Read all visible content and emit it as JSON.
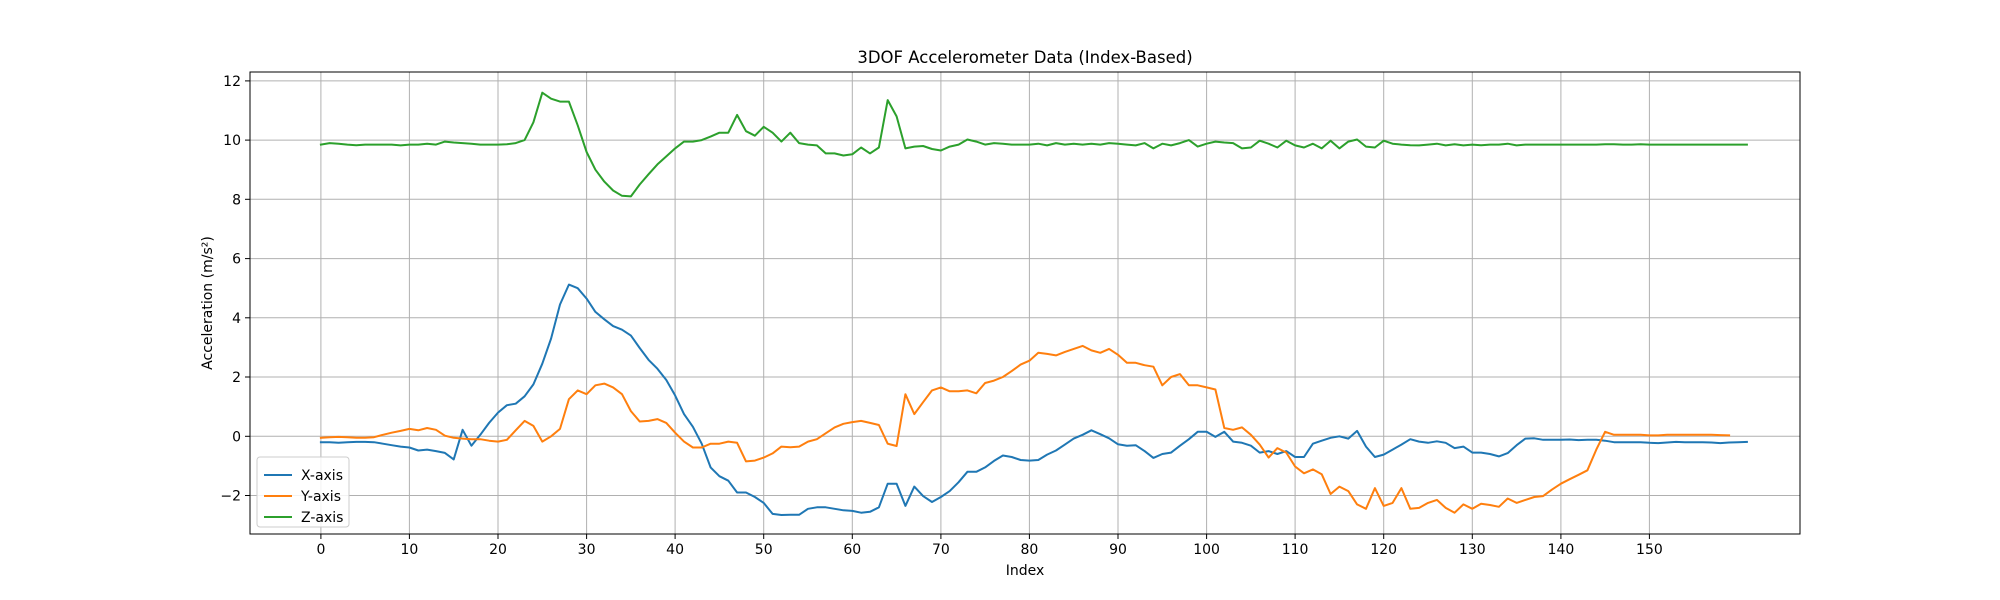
{
  "chart_data": {
    "type": "line",
    "title": "3DOF Accelerometer Data (Index-Based)",
    "xlabel": "Index",
    "ylabel": "Acceleration (m/s²)",
    "xlim": [
      -8,
      167
    ],
    "ylim": [
      -3.3,
      12.3
    ],
    "xticks": [
      0,
      10,
      20,
      30,
      40,
      50,
      60,
      70,
      80,
      90,
      100,
      110,
      120,
      130,
      140,
      150
    ],
    "yticks": [
      -2,
      0,
      2,
      4,
      6,
      8,
      10,
      12
    ],
    "grid": true,
    "legend": "lower-left",
    "x_start": 0,
    "series": [
      {
        "name": "X-axis",
        "color": "#1f77b4",
        "values": [
          -0.2,
          -0.2,
          -0.22,
          -0.2,
          -0.19,
          -0.19,
          -0.2,
          -0.25,
          -0.3,
          -0.35,
          -0.38,
          -0.48,
          -0.45,
          -0.5,
          -0.56,
          -0.78,
          0.22,
          -0.32,
          0.05,
          0.45,
          0.8,
          1.05,
          1.1,
          1.35,
          1.75,
          2.45,
          3.3,
          4.45,
          5.12,
          5.0,
          4.65,
          4.2,
          3.95,
          3.72,
          3.6,
          3.4,
          2.98,
          2.58,
          2.28,
          1.9,
          1.38,
          0.75,
          0.32,
          -0.25,
          -1.05,
          -1.35,
          -1.5,
          -1.9,
          -1.9,
          -2.05,
          -2.25,
          -2.62,
          -2.66,
          -2.65,
          -2.65,
          -2.45,
          -2.4,
          -2.4,
          -2.45,
          -2.5,
          -2.52,
          -2.58,
          -2.55,
          -2.4,
          -1.6,
          -1.6,
          -2.35,
          -1.7,
          -2.02,
          -2.22,
          -2.05,
          -1.85,
          -1.55,
          -1.2,
          -1.2,
          -1.05,
          -0.83,
          -0.65,
          -0.7,
          -0.8,
          -0.82,
          -0.8,
          -0.62,
          -0.48,
          -0.28,
          -0.08,
          0.05,
          0.2,
          0.07,
          -0.07,
          -0.27,
          -0.32,
          -0.3,
          -0.5,
          -0.73,
          -0.6,
          -0.55,
          -0.32,
          -0.1,
          0.15,
          0.15,
          -0.02,
          0.15,
          -0.18,
          -0.22,
          -0.32,
          -0.55,
          -0.5,
          -0.6,
          -0.5,
          -0.7,
          -0.7,
          -0.25,
          -0.15,
          -0.05,
          0.0,
          -0.08,
          0.18,
          -0.35,
          -0.7,
          -0.62,
          -0.45,
          -0.28,
          -0.1,
          -0.18,
          -0.22,
          -0.17,
          -0.22,
          -0.4,
          -0.35,
          -0.55,
          -0.55,
          -0.6,
          -0.68,
          -0.57,
          -0.3,
          -0.08,
          -0.07,
          -0.12,
          -0.12,
          -0.12,
          -0.11,
          -0.13,
          -0.12,
          -0.12,
          -0.15,
          -0.2,
          -0.2,
          -0.2,
          -0.2,
          -0.22,
          -0.23,
          -0.21,
          -0.19,
          -0.2,
          -0.2,
          -0.2,
          -0.21,
          -0.23,
          -0.21,
          -0.2,
          -0.19
        ]
      },
      {
        "name": "Y-axis",
        "color": "#ff7f0e",
        "values": [
          -0.05,
          -0.03,
          -0.02,
          -0.03,
          -0.05,
          -0.05,
          -0.03,
          0.05,
          0.12,
          0.18,
          0.25,
          0.2,
          0.28,
          0.22,
          0.02,
          -0.05,
          -0.08,
          -0.1,
          -0.1,
          -0.15,
          -0.18,
          -0.12,
          0.2,
          0.52,
          0.35,
          -0.18,
          0.0,
          0.25,
          1.25,
          1.55,
          1.42,
          1.72,
          1.78,
          1.65,
          1.42,
          0.85,
          0.5,
          0.52,
          0.58,
          0.45,
          0.12,
          -0.18,
          -0.38,
          -0.38,
          -0.25,
          -0.25,
          -0.18,
          -0.22,
          -0.85,
          -0.82,
          -0.72,
          -0.58,
          -0.35,
          -0.37,
          -0.35,
          -0.18,
          -0.1,
          0.1,
          0.3,
          0.42,
          0.48,
          0.52,
          0.45,
          0.38,
          -0.25,
          -0.33,
          1.42,
          0.75,
          1.15,
          1.55,
          1.65,
          1.52,
          1.52,
          1.55,
          1.45,
          1.8,
          1.88,
          2.0,
          2.2,
          2.42,
          2.55,
          2.82,
          2.78,
          2.73,
          2.85,
          2.95,
          3.05,
          2.9,
          2.82,
          2.95,
          2.75,
          2.48,
          2.48,
          2.4,
          2.35,
          1.72,
          2.0,
          2.1,
          1.72,
          1.72,
          1.65,
          1.58,
          0.28,
          0.22,
          0.3,
          0.05,
          -0.28,
          -0.72,
          -0.4,
          -0.55,
          -1.02,
          -1.25,
          -1.12,
          -1.28,
          -1.95,
          -1.7,
          -1.85,
          -2.3,
          -2.45,
          -1.75,
          -2.35,
          -2.25,
          -1.75,
          -2.45,
          -2.42,
          -2.25,
          -2.15,
          -2.42,
          -2.58,
          -2.3,
          -2.45,
          -2.28,
          -2.32,
          -2.38,
          -2.1,
          -2.25,
          -2.15,
          -2.05,
          -2.02,
          -1.8,
          -1.6,
          -1.45,
          -1.3,
          -1.15,
          -0.45,
          0.15,
          0.05,
          0.05,
          0.05,
          0.05,
          0.03,
          0.03,
          0.05,
          0.05,
          0.05,
          0.05,
          0.05,
          0.05,
          0.04,
          0.03
        ]
      },
      {
        "name": "Z-axis",
        "color": "#2ca02c",
        "values": [
          9.85,
          9.9,
          9.88,
          9.85,
          9.83,
          9.85,
          9.85,
          9.85,
          9.85,
          9.82,
          9.85,
          9.85,
          9.88,
          9.85,
          9.95,
          9.92,
          9.9,
          9.88,
          9.85,
          9.85,
          9.85,
          9.86,
          9.9,
          10.0,
          10.6,
          11.6,
          11.4,
          11.3,
          11.3,
          10.5,
          9.6,
          9.0,
          8.6,
          8.3,
          8.12,
          8.1,
          8.5,
          8.85,
          9.18,
          9.45,
          9.72,
          9.95,
          9.95,
          10.0,
          10.12,
          10.25,
          10.25,
          10.85,
          10.3,
          10.15,
          10.45,
          10.25,
          9.95,
          10.25,
          9.9,
          9.85,
          9.82,
          9.55,
          9.55,
          9.48,
          9.52,
          9.75,
          9.55,
          9.75,
          11.35,
          10.8,
          9.72,
          9.78,
          9.8,
          9.7,
          9.65,
          9.78,
          9.85,
          10.02,
          9.95,
          9.85,
          9.9,
          9.88,
          9.85,
          9.85,
          9.85,
          9.88,
          9.82,
          9.9,
          9.85,
          9.88,
          9.85,
          9.88,
          9.85,
          9.9,
          9.88,
          9.85,
          9.82,
          9.9,
          9.72,
          9.88,
          9.82,
          9.9,
          10.0,
          9.78,
          9.88,
          9.95,
          9.92,
          9.9,
          9.72,
          9.75,
          9.98,
          9.88,
          9.75,
          9.98,
          9.82,
          9.75,
          9.88,
          9.72,
          9.98,
          9.72,
          9.95,
          10.02,
          9.78,
          9.75,
          9.98,
          9.88,
          9.85,
          9.83,
          9.82,
          9.85,
          9.88,
          9.82,
          9.86,
          9.82,
          9.85,
          9.83,
          9.85,
          9.85,
          9.88,
          9.82,
          9.85,
          9.85,
          9.85,
          9.85,
          9.85,
          9.85,
          9.85,
          9.85,
          9.85,
          9.86,
          9.86,
          9.85,
          9.85,
          9.86,
          9.85,
          9.85,
          9.85,
          9.85,
          9.85,
          9.85,
          9.85,
          9.85,
          9.85,
          9.85,
          9.85,
          9.85
        ]
      }
    ]
  }
}
